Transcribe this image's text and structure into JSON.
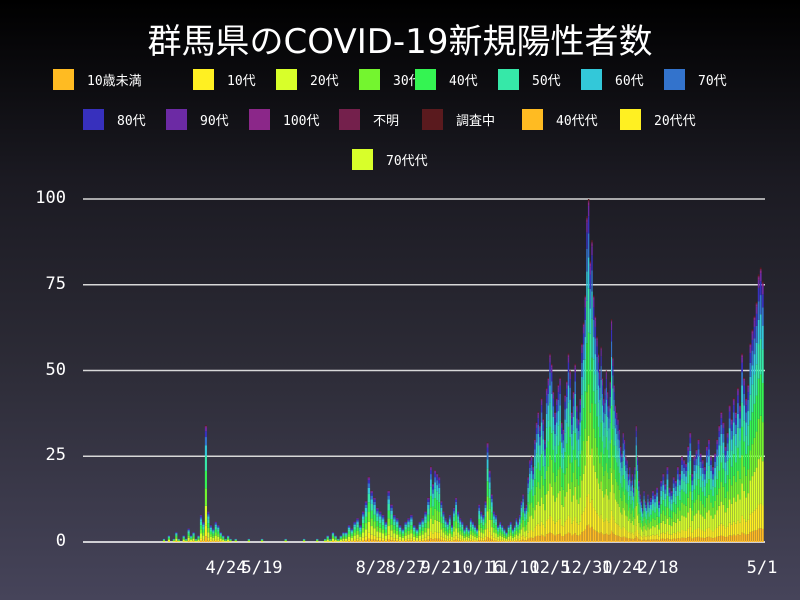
{
  "title": "群馬県のCOVID-19新規陽性者数",
  "legend": [
    {
      "label": "10歳未満",
      "color": "#ffbb22"
    },
    {
      "label": "10代",
      "color": "#fff022"
    },
    {
      "label": "20代",
      "color": "#d8ff2a"
    },
    {
      "label": "30代",
      "color": "#74f52f"
    },
    {
      "label": "40代",
      "color": "#34f452"
    },
    {
      "label": "50代",
      "color": "#36e8a8"
    },
    {
      "label": "60代",
      "color": "#33c8d9"
    },
    {
      "label": "70代",
      "color": "#3373cc"
    },
    {
      "label": "80代",
      "color": "#3730bd"
    },
    {
      "label": "90代",
      "color": "#6c2aa4"
    },
    {
      "label": "100代",
      "color": "#8b2789"
    },
    {
      "label": "不明",
      "color": "#74204c"
    },
    {
      "label": "調査中",
      "color": "#5a1a1e"
    },
    {
      "label": "40代代",
      "color": "#ffbb22"
    },
    {
      "label": "20代代",
      "color": "#fff022"
    },
    {
      "label": "70代代",
      "color": "#d8ff2a"
    }
  ],
  "chart_data": {
    "type": "bar",
    "stacked": true,
    "title": "群馬県のCOVID-19新規陽性者数",
    "xlabel": "",
    "ylabel": "",
    "ylim": [
      0,
      100
    ],
    "yticks": [
      0,
      25,
      50,
      75,
      100
    ],
    "xtick_labels": [
      "4/24",
      "5/19",
      "8/2",
      "8/27",
      "9/21",
      "10/16",
      "11/10",
      "12/5",
      "12/30",
      "1/24",
      "2/18",
      "5/1"
    ],
    "grid": "horizontal",
    "legend_position": "top",
    "series_names": [
      "10歳未満",
      "10代",
      "20代",
      "30代",
      "40代",
      "50代",
      "60代",
      "70代",
      "80代",
      "90代",
      "100代",
      "不明",
      "調査中"
    ],
    "approx_daily_totals_segments": [
      {
        "period": "2020-03 to 2020-04",
        "values": [
          0,
          0,
          1,
          0,
          2,
          0,
          1,
          3,
          1,
          0,
          2,
          1,
          4,
          2,
          3,
          1,
          2,
          8,
          6,
          34,
          9,
          5,
          4,
          6,
          5,
          3,
          2,
          1,
          2,
          1
        ]
      },
      {
        "period": "2020-05 to 2020-07",
        "values": [
          0,
          1,
          0,
          0,
          0,
          0,
          1,
          0,
          0,
          0,
          0,
          1,
          0,
          0,
          0,
          0,
          0,
          0,
          0,
          0,
          1,
          0,
          0,
          0,
          0,
          0,
          0,
          1,
          0,
          0,
          0,
          0,
          1,
          0,
          0,
          1,
          2,
          1,
          3,
          2,
          1,
          2,
          3
        ]
      },
      {
        "period": "2020-08",
        "values": [
          3,
          5,
          4,
          6,
          7,
          5,
          9,
          12,
          19,
          15,
          13,
          10,
          9,
          8,
          6,
          15,
          11,
          8,
          7,
          5,
          4,
          6,
          7,
          8,
          5,
          4,
          6,
          7,
          9,
          13
        ]
      },
      {
        "period": "2020-09 to 2020-10",
        "values": [
          22,
          17,
          21,
          20,
          19,
          12,
          9,
          7,
          6,
          8,
          5,
          10,
          13,
          9,
          7,
          6,
          4,
          5,
          4,
          7,
          6,
          5,
          4,
          11,
          9,
          8,
          12,
          29,
          21,
          14,
          9,
          8,
          5,
          6,
          5,
          4,
          3,
          5,
          6,
          4
        ]
      },
      {
        "period": "2020-11 to 2020-12",
        "values": [
          5,
          7,
          6,
          8,
          12,
          14,
          10,
          11,
          19,
          24,
          25,
          22,
          30,
          35,
          38,
          34,
          42,
          36,
          30,
          45,
          48,
          55,
          52,
          44,
          38,
          42,
          46,
          48,
          35,
          33,
          43,
          47,
          55,
          50,
          38,
          44,
          52,
          40,
          36,
          42,
          58,
          64,
          72,
          95,
          100,
          82,
          88,
          72,
          66,
          60
        ]
      },
      {
        "period": "2021-01 to 2021-02",
        "values": [
          55,
          50,
          57,
          48,
          42,
          45,
          50,
          44,
          40,
          47,
          65,
          54,
          46,
          40,
          38,
          36,
          33,
          28,
          26,
          32,
          30,
          25,
          24,
          20,
          22,
          18,
          20,
          16,
          22,
          34,
          25,
          18,
          14,
          12,
          10,
          15,
          12,
          11,
          14,
          12
        ]
      },
      {
        "period": "2021-03 to 2021-05-01",
        "values": [
          13,
          15,
          14,
          16,
          12,
          18,
          20,
          17,
          22,
          16,
          15,
          19,
          18,
          22,
          20,
          25,
          24,
          23,
          28,
          32,
          20,
          25,
          27,
          30,
          26,
          24,
          22,
          28,
          30,
          25,
          22,
          26,
          30,
          34,
          38,
          35,
          28,
          32,
          40,
          36,
          42,
          38,
          45,
          40,
          55,
          48,
          42,
          46,
          58,
          62,
          66,
          70,
          78,
          80,
          76
        ]
      }
    ]
  }
}
